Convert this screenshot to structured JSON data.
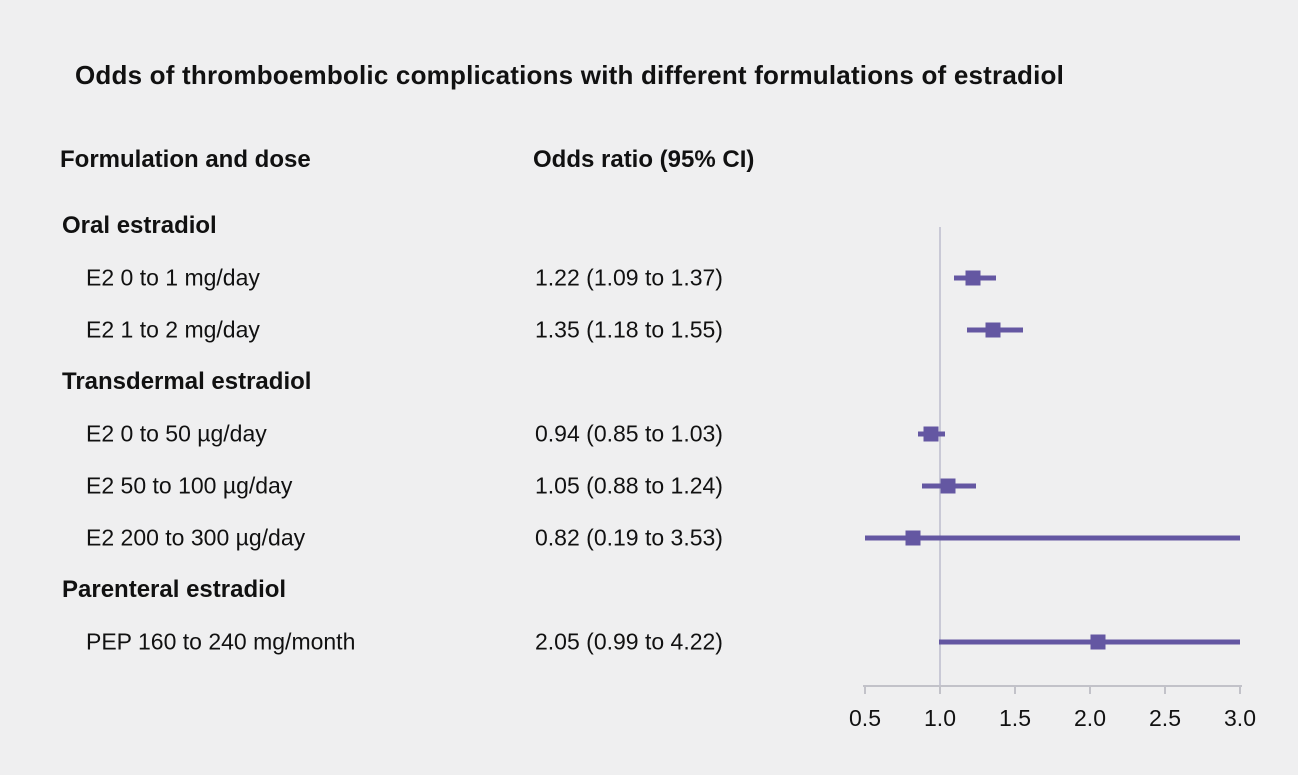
{
  "title": "Odds of thromboembolic complications with different formulations of estradiol",
  "columns": {
    "formulation": "Formulation and dose",
    "odds_ratio": "Odds ratio (95% CI)"
  },
  "chart_data": {
    "type": "forest",
    "title": "Odds of thromboembolic complications with different formulations of estradiol",
    "xlim": [
      0.5,
      3.0
    ],
    "ref_line": 1.0,
    "x_ticks": [
      0.5,
      1.0,
      1.5,
      2.0,
      2.5,
      3.0
    ],
    "x_tick_labels": [
      "0.5",
      "1.0",
      "1.5",
      "2.0",
      "2.5",
      "3.0"
    ],
    "grid": false,
    "rows": [
      {
        "kind": "group",
        "label": "Oral estradiol"
      },
      {
        "kind": "item",
        "label": "E2 0 to 1 mg/day",
        "estimate_text": "1.22 (1.09 to 1.37)",
        "or": 1.22,
        "low": 1.09,
        "high": 1.37
      },
      {
        "kind": "item",
        "label": "E2 1 to 2 mg/day",
        "estimate_text": "1.35 (1.18 to 1.55)",
        "or": 1.35,
        "low": 1.18,
        "high": 1.55
      },
      {
        "kind": "group",
        "label": "Transdermal estradiol"
      },
      {
        "kind": "item",
        "label": "E2 0 to 50 µg/day",
        "estimate_text": "0.94 (0.85 to 1.03)",
        "or": 0.94,
        "low": 0.85,
        "high": 1.03
      },
      {
        "kind": "item",
        "label": "E2 50 to 100 µg/day",
        "estimate_text": "1.05 (0.88 to 1.24)",
        "or": 1.05,
        "low": 0.88,
        "high": 1.24
      },
      {
        "kind": "item",
        "label": "E2 200 to 300 µg/day",
        "estimate_text": "0.82 (0.19 to 3.53)",
        "or": 0.82,
        "low": 0.19,
        "high": 3.53
      },
      {
        "kind": "group",
        "label": "Parenteral estradiol"
      },
      {
        "kind": "item",
        "label": "PEP 160 to 240 mg/month",
        "estimate_text": "2.05 (0.99 to 4.22)",
        "or": 2.05,
        "low": 0.99,
        "high": 4.22
      }
    ],
    "colors": {
      "marker": "#6457a2",
      "ref_line": "#c9c9d6",
      "axis": "#c2c2c9",
      "background": "#efeff0",
      "text": "#111111"
    }
  }
}
